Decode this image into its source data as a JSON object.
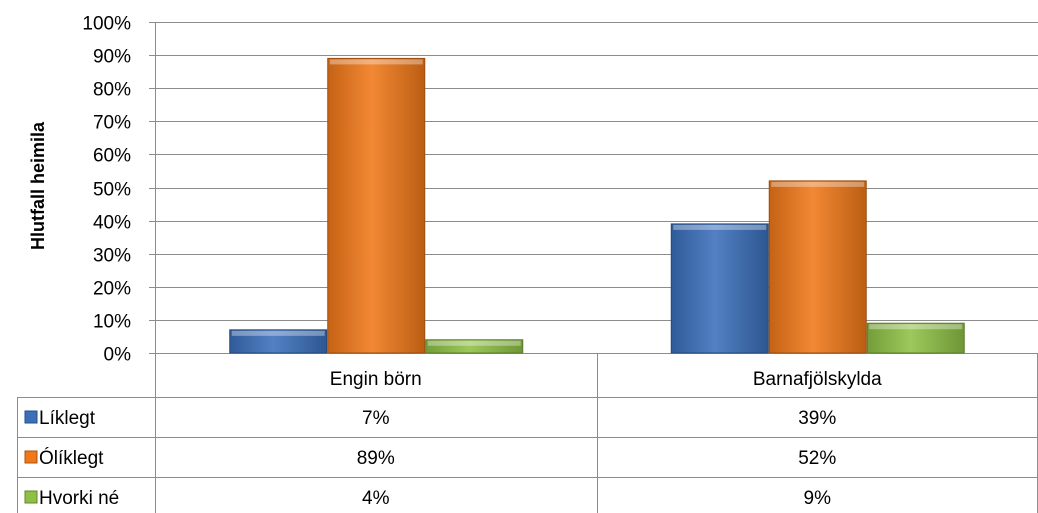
{
  "chart_data": {
    "type": "bar",
    "ylabel": "Hlutfall heimila",
    "ylim": [
      0,
      100
    ],
    "yticks": [
      0,
      10,
      20,
      30,
      40,
      50,
      60,
      70,
      80,
      90,
      100
    ],
    "ytick_labels": [
      "0%",
      "10%",
      "20%",
      "30%",
      "40%",
      "50%",
      "60%",
      "70%",
      "80%",
      "90%",
      "100%"
    ],
    "categories": [
      "Engin börn",
      "Barnafjölskylda"
    ],
    "series": [
      {
        "name": "Líklegt",
        "values": [
          7,
          39
        ],
        "labels": [
          "7%",
          "39%"
        ],
        "color": "#3a6fba"
      },
      {
        "name": "Ólíklegt",
        "values": [
          89,
          52
        ],
        "labels": [
          "89%",
          "52%"
        ],
        "color": "#f07818"
      },
      {
        "name": "Hvorki né",
        "values": [
          4,
          9
        ],
        "labels": [
          "4%",
          "9%"
        ],
        "color": "#8ec046"
      }
    ],
    "grid": true,
    "data_table": true
  }
}
